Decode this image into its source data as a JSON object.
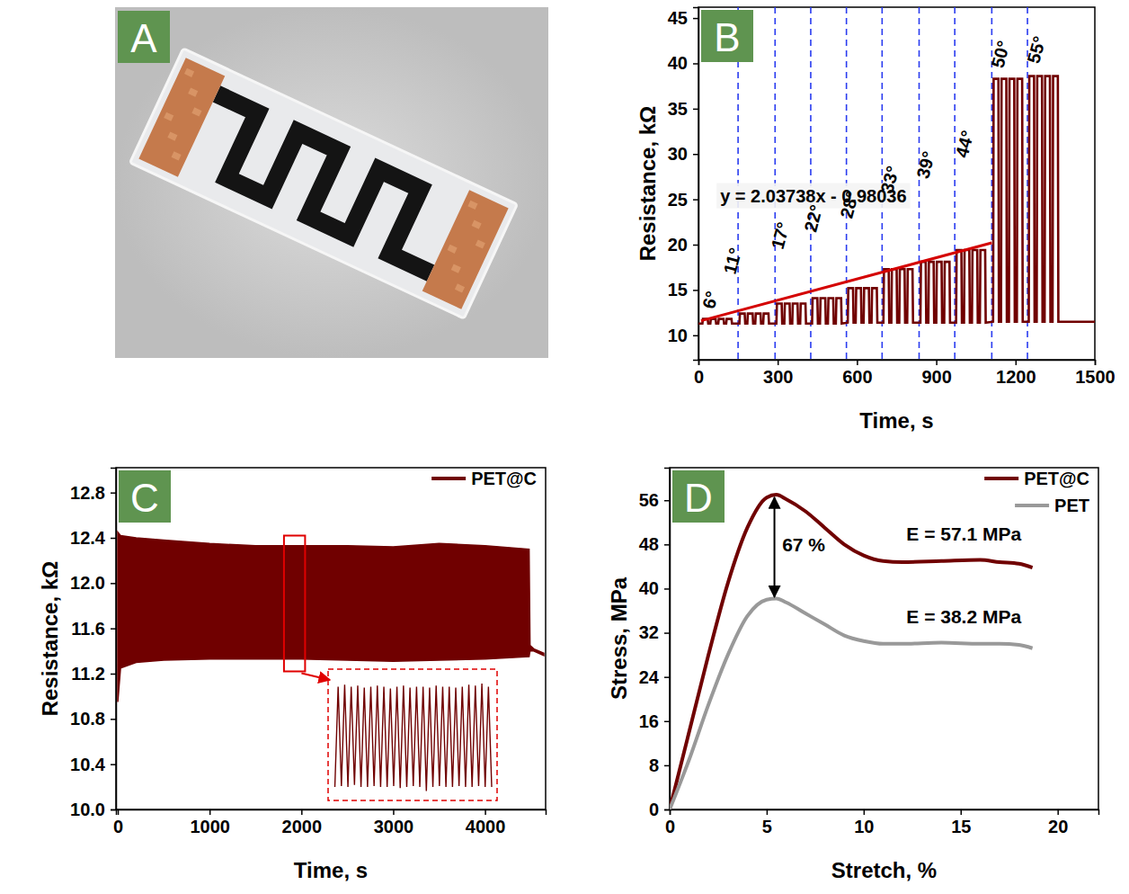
{
  "photo": {
    "panel": "A"
  },
  "chart_data": [
    {
      "panel": "B",
      "type": "line",
      "x_label": "Time, s",
      "y_label": "Resistance, kΩ",
      "xlim": [
        0,
        1500
      ],
      "xticks": [
        0,
        300,
        600,
        900,
        1200,
        1500
      ],
      "ylim": [
        7.3,
        46.2
      ],
      "yticks": [
        10,
        15,
        20,
        25,
        30,
        35,
        40,
        45
      ],
      "series": [
        {
          "color": "#700000",
          "x": [
            0,
            15,
            17,
            35,
            37,
            45,
            47,
            65,
            67,
            75,
            77,
            95,
            97,
            105,
            107,
            125,
            127,
            155,
            157,
            175,
            177,
            185,
            187,
            205,
            207,
            215,
            217,
            235,
            237,
            245,
            247,
            265,
            267,
            295,
            297,
            315,
            317,
            325,
            327,
            345,
            347,
            355,
            357,
            375,
            377,
            385,
            387,
            405,
            407,
            430,
            432,
            450,
            452,
            460,
            462,
            480,
            482,
            490,
            492,
            510,
            512,
            520,
            522,
            540,
            542,
            565,
            567,
            585,
            587,
            595,
            597,
            615,
            617,
            625,
            627,
            645,
            647,
            655,
            657,
            675,
            677,
            700,
            702,
            720,
            722,
            730,
            732,
            750,
            752,
            760,
            762,
            780,
            782,
            790,
            792,
            810,
            812,
            840,
            842,
            860,
            862,
            870,
            872,
            890,
            892,
            900,
            902,
            920,
            922,
            930,
            932,
            950,
            952,
            975,
            977,
            995,
            997,
            1005,
            1007,
            1025,
            1027,
            1035,
            1037,
            1055,
            1057,
            1065,
            1067,
            1085,
            1087,
            1115,
            1117,
            1135,
            1137,
            1145,
            1147,
            1165,
            1167,
            1175,
            1177,
            1195,
            1197,
            1205,
            1207,
            1225,
            1227,
            1250,
            1252,
            1270,
            1272,
            1280,
            1282,
            1300,
            1302,
            1310,
            1312,
            1330,
            1332,
            1340,
            1342,
            1360,
            1362,
            1500
          ],
          "values": [
            11.3,
            11.3,
            11.8,
            11.8,
            11.3,
            11.3,
            11.8,
            11.8,
            11.3,
            11.3,
            11.8,
            11.8,
            11.3,
            11.3,
            11.8,
            11.8,
            11.3,
            11.3,
            12.4,
            12.4,
            11.3,
            11.3,
            12.4,
            12.4,
            11.3,
            11.3,
            12.4,
            12.4,
            11.3,
            11.3,
            12.4,
            12.4,
            11.3,
            11.3,
            13.5,
            13.5,
            11.3,
            11.3,
            13.5,
            13.5,
            11.3,
            11.3,
            13.5,
            13.5,
            11.3,
            11.3,
            13.5,
            13.5,
            11.3,
            11.3,
            14.1,
            14.1,
            11.3,
            11.3,
            14.1,
            14.1,
            11.3,
            11.3,
            14.1,
            14.1,
            11.3,
            11.3,
            14.1,
            14.1,
            11.3,
            11.4,
            15.2,
            15.2,
            11.4,
            11.4,
            15.2,
            15.2,
            11.4,
            11.4,
            15.2,
            15.2,
            11.4,
            11.4,
            15.2,
            15.2,
            11.4,
            11.4,
            17.3,
            17.3,
            11.4,
            11.4,
            17.3,
            17.3,
            11.4,
            11.4,
            17.3,
            17.3,
            11.4,
            11.4,
            17.3,
            17.3,
            11.4,
            11.4,
            18.1,
            18.1,
            11.4,
            11.4,
            18.1,
            18.1,
            11.4,
            11.4,
            18.1,
            18.1,
            11.4,
            11.4,
            18.1,
            18.1,
            11.4,
            11.4,
            19.4,
            19.4,
            11.4,
            11.4,
            19.4,
            19.4,
            11.4,
            11.4,
            19.4,
            19.4,
            11.4,
            11.4,
            19.4,
            19.4,
            11.4,
            11.5,
            38.3,
            38.3,
            11.5,
            11.5,
            38.3,
            38.3,
            11.5,
            11.5,
            38.3,
            38.3,
            11.5,
            11.5,
            38.3,
            38.3,
            11.5,
            11.5,
            38.6,
            38.6,
            11.5,
            11.5,
            38.6,
            38.6,
            11.5,
            11.5,
            38.6,
            38.6,
            11.5,
            11.5,
            38.6,
            38.6,
            11.5,
            11.5
          ]
        }
      ],
      "vlines": [
        150,
        290,
        425,
        560,
        695,
        835,
        970,
        1110,
        1245
      ],
      "fit_line": {
        "color": "#d40000",
        "x": [
          10,
          1110
        ],
        "values": [
          11.6,
          20.2
        ]
      },
      "equation": {
        "text": "y = 2.03738x - 0.98036",
        "x": 435,
        "y": 25.4
      },
      "annotations": [
        {
          "text": "6°",
          "x": 45,
          "y": 13.9
        },
        {
          "text": "11°",
          "x": 129,
          "y": 18.2
        },
        {
          "text": "17°",
          "x": 310,
          "y": 21
        },
        {
          "text": "22°",
          "x": 435,
          "y": 22.9
        },
        {
          "text": "28°",
          "x": 571,
          "y": 24.4
        },
        {
          "text": "33°",
          "x": 724,
          "y": 27.2
        },
        {
          "text": "39°",
          "x": 860,
          "y": 28.8
        },
        {
          "text": "44°",
          "x": 1007,
          "y": 31.1
        },
        {
          "text": "50°",
          "x": 1143,
          "y": 41
        },
        {
          "text": "55°",
          "x": 1279,
          "y": 41.5
        }
      ]
    },
    {
      "panel": "C",
      "type": "area",
      "x_label": "Time, s",
      "y_label": "Resistance, kΩ",
      "xlim": [
        -20,
        4660
      ],
      "xticks": [
        0,
        1000,
        2000,
        3000,
        4000
      ],
      "ylim": [
        10,
        13.02
      ],
      "yticks": [
        {
          "value": 10,
          "label": "10.0"
        },
        10.4,
        10.8,
        11.2,
        11.6,
        {
          "value": 12,
          "label": "12.0"
        },
        12.4,
        12.8
      ],
      "legend": "upper right",
      "series": [
        {
          "name": "PET@C",
          "color": "#700000",
          "x": [
            0,
            30,
            200,
            500,
            1000,
            1500,
            2000,
            2500,
            3000,
            3500,
            4000,
            4480,
            4490,
            4530,
            4640
          ],
          "upper": [
            12.45,
            12.42,
            12.4,
            12.38,
            12.35,
            12.33,
            12.33,
            12.33,
            12.32,
            12.35,
            12.33,
            12.3,
            11.45,
            11.42,
            11.38
          ],
          "lower": [
            10.95,
            11.25,
            11.3,
            11.32,
            11.33,
            11.33,
            11.33,
            11.32,
            11.31,
            11.32,
            11.33,
            11.35,
            11.4,
            11.4,
            11.36
          ]
        }
      ],
      "zoom_box": {
        "x": [
          1810,
          2040
        ],
        "y": [
          11.22,
          12.42
        ]
      },
      "inset": {
        "x": [
          1812,
          1816.75,
          1821.5,
          1826.25,
          1831,
          1835.75,
          1840.5,
          1845.25,
          1850,
          1854.75,
          1859.5,
          1864.25,
          1869,
          1873.75,
          1878.5,
          1883.25,
          1888,
          1892.75,
          1897.5,
          1902.25,
          1907,
          1911.75,
          1916.5,
          1921.25,
          1926,
          1930.75,
          1935.5,
          1940.25,
          1945,
          1949.75,
          1954.5,
          1959.25,
          1964,
          1968.75,
          1973.5,
          1978.25,
          1983,
          1987.75,
          1992.5,
          1997.25,
          2002,
          2006.75,
          2011.5,
          2016.25,
          2021,
          2025.75,
          2030.5,
          2035.25,
          2040
        ],
        "values": [
          11.3,
          12.3,
          11.31,
          12.32,
          11.3,
          12.3,
          11.32,
          12.31,
          11.3,
          12.29,
          11.3,
          12.3,
          11.31,
          12.31,
          11.3,
          12.3,
          11.3,
          12.28,
          11.31,
          12.3,
          11.29,
          12.31,
          11.3,
          12.29,
          11.31,
          12.3,
          11.3,
          12.3,
          11.26,
          12.29,
          11.3,
          12.31,
          11.31,
          12.3,
          11.3,
          12.3,
          11.3,
          12.29,
          11.31,
          12.3,
          11.3,
          12.32,
          11.3,
          12.31,
          11.31,
          12.33,
          11.3,
          12.3,
          11.3
        ]
      }
    },
    {
      "panel": "D",
      "type": "line",
      "x_label": "Stretch, %",
      "y_label": "Stress, MPa",
      "xlim": [
        0,
        22.1
      ],
      "xticks": [
        0,
        5,
        10,
        15,
        20
      ],
      "ylim": [
        0,
        61.9
      ],
      "yticks": [
        0,
        8,
        16,
        24,
        32,
        40,
        48,
        56
      ],
      "legend": "upper right",
      "series": [
        {
          "name": "PET@C",
          "color": "#700000",
          "x": [
            0,
            1,
            2,
            3,
            4,
            5,
            5.5,
            6,
            7,
            8,
            9,
            10,
            11,
            12,
            14,
            16,
            17,
            18,
            18.7
          ],
          "values": [
            0,
            14,
            28,
            41,
            51,
            56.5,
            57,
            56.2,
            54,
            51,
            48,
            46,
            45,
            44.8,
            45,
            45.2,
            44.8,
            44.5,
            43.8
          ]
        },
        {
          "name": "PET",
          "color": "#999999",
          "x": [
            0,
            1,
            2,
            3,
            4,
            5,
            5.5,
            6,
            7,
            8,
            9,
            10,
            11,
            12,
            14,
            16,
            17,
            18,
            18.7
          ],
          "values": [
            0,
            9,
            19,
            28,
            35,
            38,
            38.2,
            37.5,
            35.5,
            33.5,
            31.5,
            30.5,
            30,
            30,
            30.2,
            30,
            30,
            29.8,
            29.2
          ]
        }
      ],
      "arrow": {
        "x": 5.4,
        "y": [
          56.5,
          38.5
        ]
      },
      "annotations": [
        {
          "text": "67 %",
          "x": 5.8,
          "y": 48
        },
        {
          "text": "E = 57.1 MPa",
          "x": 12.2,
          "y": 50
        },
        {
          "text": "E = 38.2 MPa",
          "x": 12.2,
          "y": 35
        }
      ]
    }
  ]
}
